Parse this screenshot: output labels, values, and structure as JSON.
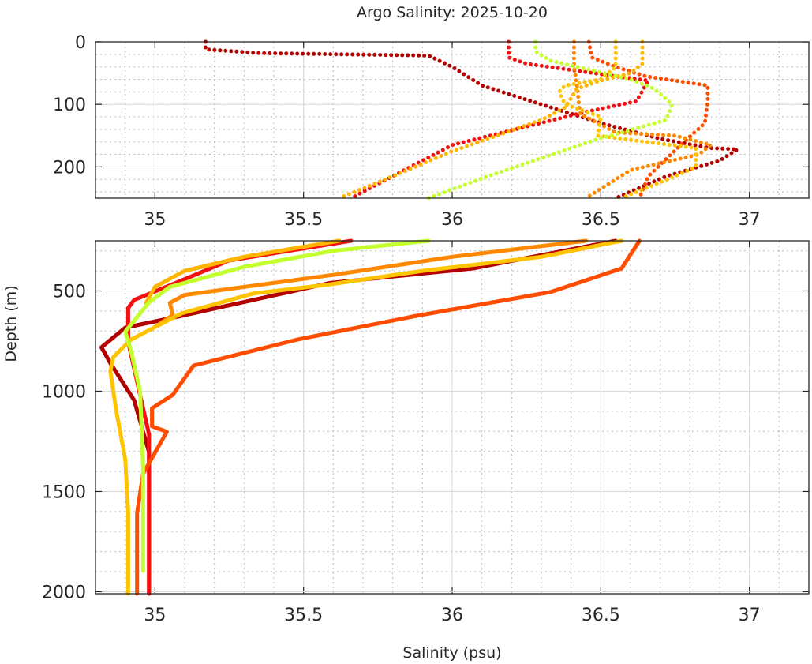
{
  "chart_data": {
    "type": "line",
    "title": "Argo Salinity: 2025-10-20",
    "xlabel": "Salinity (psu)",
    "ylabel": "Depth (m)",
    "grid": "major solid, minor dotted",
    "xlim": [
      34.8,
      37.2
    ],
    "xticks": [
      35,
      35.5,
      36,
      36.5,
      37
    ],
    "xtick_labels": [
      "35",
      "35.5",
      "36",
      "36.5",
      "37"
    ],
    "panels": [
      {
        "name": "upper",
        "ylim": [
          0,
          250
        ],
        "yticks": [
          0,
          100,
          200
        ],
        "ytick_labels": [
          "0",
          "100",
          "200"
        ],
        "minor_y_step": 20
      },
      {
        "name": "lower",
        "ylim": [
          250,
          2010
        ],
        "yticks": [
          500,
          1000,
          1500,
          2000
        ],
        "ytick_labels": [
          "500",
          "1000",
          "1500",
          "2000"
        ],
        "minor_y_step": 100
      }
    ],
    "series": [
      {
        "name": "profile-dark-red",
        "color": "#b30000",
        "points": [
          [
            35.17,
            0
          ],
          [
            35.17,
            12
          ],
          [
            35.35,
            18
          ],
          [
            35.92,
            22
          ],
          [
            36.0,
            40
          ],
          [
            36.1,
            70
          ],
          [
            36.3,
            100
          ],
          [
            36.5,
            130
          ],
          [
            36.7,
            155
          ],
          [
            36.87,
            170
          ],
          [
            36.96,
            172
          ],
          [
            36.9,
            190
          ],
          [
            36.72,
            215
          ],
          [
            36.55,
            250
          ],
          [
            36.07,
            388
          ],
          [
            35.59,
            460
          ],
          [
            35.27,
            565
          ],
          [
            35.09,
            624
          ],
          [
            34.9,
            683
          ],
          [
            34.82,
            781
          ],
          [
            34.85,
            860
          ],
          [
            34.93,
            1045
          ],
          [
            34.98,
            1305
          ],
          [
            34.98,
            1600
          ],
          [
            34.98,
            2010
          ]
        ]
      },
      {
        "name": "profile-red",
        "color": "#f21010",
        "points": [
          [
            36.19,
            0
          ],
          [
            36.19,
            25
          ],
          [
            36.25,
            35
          ],
          [
            36.55,
            55
          ],
          [
            36.66,
            62
          ],
          [
            36.62,
            95
          ],
          [
            36.45,
            112
          ],
          [
            36.0,
            165
          ],
          [
            35.66,
            250
          ],
          [
            35.25,
            348
          ],
          [
            35.06,
            466
          ],
          [
            34.93,
            545
          ],
          [
            34.91,
            585
          ],
          [
            34.91,
            754
          ],
          [
            34.98,
            1215
          ],
          [
            34.98,
            1600
          ],
          [
            34.98,
            2010
          ]
        ]
      },
      {
        "name": "profile-orange-red",
        "color": "#ff4d00",
        "points": [
          [
            36.46,
            0
          ],
          [
            36.47,
            25
          ],
          [
            36.55,
            40
          ],
          [
            36.65,
            55
          ],
          [
            36.86,
            70
          ],
          [
            36.86,
            95
          ],
          [
            36.85,
            130
          ],
          [
            36.78,
            160
          ],
          [
            36.66,
            215
          ],
          [
            36.63,
            250
          ],
          [
            36.57,
            388
          ],
          [
            36.33,
            506
          ],
          [
            35.88,
            624
          ],
          [
            35.48,
            742
          ],
          [
            35.13,
            872
          ],
          [
            35.06,
            1018
          ],
          [
            34.99,
            1085
          ],
          [
            34.99,
            1175
          ],
          [
            35.04,
            1202
          ],
          [
            34.96,
            1411
          ],
          [
            34.94,
            1608
          ],
          [
            34.94,
            2010
          ]
        ]
      },
      {
        "name": "profile-orange",
        "color": "#ff8800",
        "points": [
          [
            36.41,
            0
          ],
          [
            36.41,
            40
          ],
          [
            36.42,
            70
          ],
          [
            36.43,
            115
          ],
          [
            36.55,
            145
          ],
          [
            36.75,
            150
          ],
          [
            36.87,
            165
          ],
          [
            36.83,
            180
          ],
          [
            36.6,
            205
          ],
          [
            36.45,
            250
          ],
          [
            36.0,
            330
          ],
          [
            35.6,
            420
          ],
          [
            35.1,
            520
          ],
          [
            35.05,
            560
          ],
          [
            35.06,
            620
          ],
          [
            35.0,
            680
          ]
        ]
      },
      {
        "name": "profile-amber-short",
        "color": "#ffb400",
        "points": [
          [
            36.64,
            0
          ],
          [
            36.64,
            35
          ],
          [
            36.6,
            50
          ],
          [
            36.5,
            62
          ],
          [
            36.42,
            75
          ],
          [
            36.38,
            105
          ],
          [
            36.3,
            125
          ],
          [
            36.0,
            175
          ],
          [
            35.8,
            215
          ],
          [
            35.62,
            250
          ],
          [
            35.3,
            330
          ],
          [
            35.1,
            400
          ],
          [
            35.0,
            480
          ],
          [
            34.97,
            560
          ]
        ]
      },
      {
        "name": "profile-amber",
        "color": "#ffc400",
        "points": [
          [
            36.55,
            0
          ],
          [
            36.55,
            40
          ],
          [
            36.5,
            60
          ],
          [
            36.38,
            70
          ],
          [
            36.36,
            80
          ],
          [
            36.38,
            100
          ],
          [
            36.5,
            120
          ],
          [
            36.49,
            150
          ],
          [
            36.65,
            160
          ],
          [
            36.82,
            170
          ],
          [
            36.82,
            200
          ],
          [
            36.75,
            215
          ],
          [
            36.57,
            250
          ],
          [
            36.3,
            330
          ],
          [
            35.9,
            400
          ],
          [
            35.59,
            467
          ],
          [
            35.33,
            513
          ],
          [
            35.09,
            612
          ],
          [
            34.92,
            742
          ],
          [
            34.86,
            830
          ],
          [
            34.85,
            900
          ],
          [
            34.87,
            1100
          ],
          [
            34.9,
            1340
          ],
          [
            34.91,
            1600
          ],
          [
            34.91,
            2010
          ]
        ]
      },
      {
        "name": "profile-yellow-green",
        "color": "#c4ff2e",
        "points": [
          [
            36.28,
            0
          ],
          [
            36.28,
            15
          ],
          [
            36.33,
            30
          ],
          [
            36.42,
            40
          ],
          [
            36.6,
            60
          ],
          [
            36.68,
            75
          ],
          [
            36.74,
            100
          ],
          [
            36.72,
            125
          ],
          [
            36.48,
            157
          ],
          [
            36.12,
            215
          ],
          [
            35.92,
            250
          ],
          [
            35.6,
            300
          ],
          [
            35.3,
            380
          ],
          [
            35.15,
            440
          ],
          [
            35.05,
            480
          ],
          [
            34.98,
            557
          ],
          [
            34.9,
            703
          ],
          [
            34.92,
            800
          ],
          [
            34.95,
            1000
          ],
          [
            34.96,
            1372
          ],
          [
            34.96,
            1896
          ]
        ]
      }
    ]
  }
}
